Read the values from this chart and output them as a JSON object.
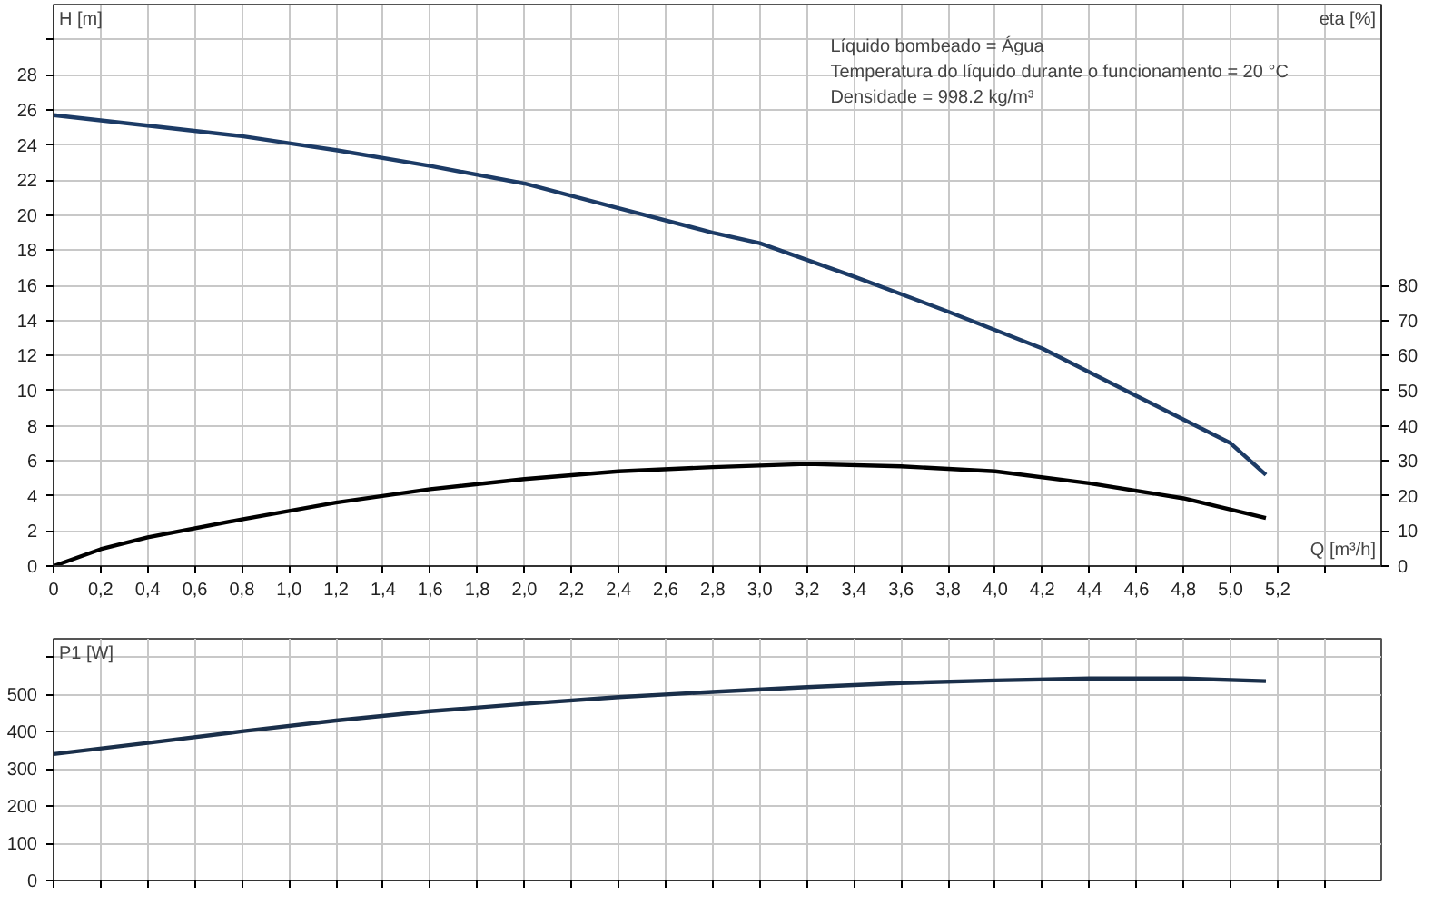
{
  "chart_data": [
    {
      "type": "line",
      "ylabel": "H [m]",
      "y2label": "eta [%]",
      "xlabel": "Q [m³/h]",
      "annotations": [
        "Líquido bombeado = Água",
        "Temperatura do líquido durante o funcionamento = 20 °C",
        "Densidade = 998.2 kg/m³"
      ],
      "xlim": [
        0,
        5.64
      ],
      "xticks": [
        0,
        {
          "value": 0.2,
          "label": "0,2"
        },
        {
          "value": 0.4,
          "label": "0,4"
        },
        {
          "value": 0.6,
          "label": "0,6"
        },
        {
          "value": 0.8,
          "label": "0,8"
        },
        {
          "value": 1.0,
          "label": "1,0"
        },
        {
          "value": 1.2,
          "label": "1,2"
        },
        {
          "value": 1.4,
          "label": "1,4"
        },
        {
          "value": 1.6,
          "label": "1,6"
        },
        {
          "value": 1.8,
          "label": "1,8"
        },
        {
          "value": 2.0,
          "label": "2,0"
        },
        {
          "value": 2.2,
          "label": "2,2"
        },
        {
          "value": 2.4,
          "label": "2,4"
        },
        {
          "value": 2.6,
          "label": "2,6"
        },
        {
          "value": 2.8,
          "label": "2,8"
        },
        {
          "value": 3.0,
          "label": "3,0"
        },
        {
          "value": 3.2,
          "label": "3,2"
        },
        {
          "value": 3.4,
          "label": "3,4"
        },
        {
          "value": 3.6,
          "label": "3,6"
        },
        {
          "value": 3.8,
          "label": "3,8"
        },
        {
          "value": 4.0,
          "label": "4,0"
        },
        {
          "value": 4.2,
          "label": "4,2"
        },
        {
          "value": 4.4,
          "label": "4,4"
        },
        {
          "value": 4.6,
          "label": "4,6"
        },
        {
          "value": 4.8,
          "label": "4,8"
        },
        {
          "value": 5.0,
          "label": "5,0"
        },
        {
          "value": 5.2,
          "label": "5,2"
        },
        {
          "value": 5.4,
          "label": null
        }
      ],
      "ylim": [
        0,
        32
      ],
      "yticks": [
        0,
        2,
        4,
        6,
        8,
        10,
        12,
        14,
        16,
        18,
        20,
        22,
        24,
        26,
        28,
        {
          "value": 30,
          "label": null
        }
      ],
      "y2lim": [
        0,
        160
      ],
      "y2ticks": [
        0,
        10,
        20,
        30,
        40,
        50,
        60,
        70,
        80
      ],
      "grid": true,
      "line_style": "solid",
      "series": [
        {
          "color": "#1c3b66",
          "axis": "y",
          "x": [
            0,
            0.4,
            0.8,
            1.0,
            1.2,
            1.6,
            2.0,
            2.4,
            2.8,
            3.0,
            3.4,
            3.8,
            4.2,
            4.6,
            5.0,
            5.15
          ],
          "values": [
            25.7,
            25.1,
            24.5,
            24.1,
            23.7,
            22.8,
            21.8,
            20.4,
            19.0,
            18.4,
            16.5,
            14.5,
            12.4,
            9.7,
            7.0,
            5.2
          ]
        },
        {
          "color": "#000000",
          "axis": "y2",
          "x": [
            0,
            0.2,
            0.4,
            0.8,
            1.2,
            1.6,
            2.0,
            2.4,
            2.8,
            3.2,
            3.6,
            4.0,
            4.4,
            4.8,
            5.15
          ],
          "values": [
            0,
            4.8,
            8.2,
            13.3,
            18.1,
            21.9,
            24.8,
            27.0,
            28.2,
            29.1,
            28.4,
            27.0,
            23.6,
            19.3,
            13.7
          ]
        }
      ]
    },
    {
      "type": "line",
      "ylabel": "P1 [W]",
      "tick_labels": "y",
      "xlim": [
        0,
        5.64
      ],
      "xticks": [
        0,
        0.2,
        0.4,
        0.6,
        0.8,
        1.0,
        1.2,
        1.4,
        1.6,
        1.8,
        2.0,
        2.2,
        2.4,
        2.6,
        2.8,
        3.0,
        3.2,
        3.4,
        3.6,
        3.8,
        4.0,
        4.2,
        4.4,
        4.6,
        4.8,
        5.0,
        5.2,
        5.4
      ],
      "ylim": [
        0,
        650
      ],
      "yticks": [
        0,
        100,
        200,
        300,
        400,
        500,
        {
          "value": 600,
          "label": null
        }
      ],
      "grid": true,
      "line_style": "solid",
      "series": [
        {
          "color": "#1a2f4a",
          "axis": "y",
          "x": [
            0,
            0.4,
            0.8,
            1.2,
            1.6,
            2.0,
            2.4,
            2.8,
            3.2,
            3.6,
            4.0,
            4.4,
            4.8,
            5.15
          ],
          "values": [
            340,
            370,
            401,
            430,
            455,
            475,
            493,
            507,
            520,
            531,
            538,
            543,
            543,
            536
          ]
        }
      ]
    }
  ]
}
